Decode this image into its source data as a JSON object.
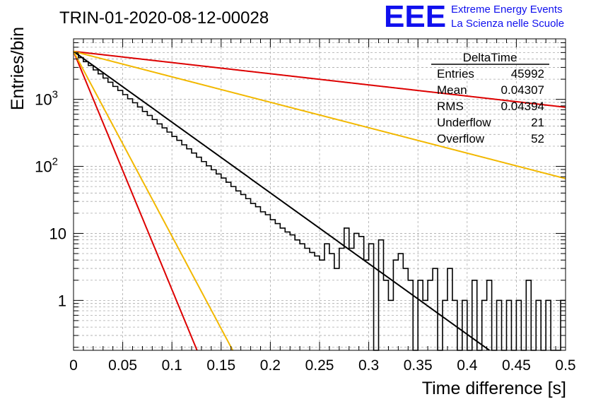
{
  "run_title": "TRIN-01-2020-08-12-00028",
  "logo": {
    "text": "EEE",
    "line1": "Extreme Energy Events",
    "line2": "La Scienza nelle Scuole",
    "color": "#1010ee"
  },
  "stats": {
    "title": "DeltaTime",
    "rows": [
      {
        "label": "Entries",
        "value": "45992"
      },
      {
        "label": "Mean",
        "value": "0.04307"
      },
      {
        "label": "RMS",
        "value": "0.04394"
      },
      {
        "label": "Underflow",
        "value": "21"
      },
      {
        "label": "Overflow",
        "value": "52"
      }
    ]
  },
  "chart_data": {
    "type": "histogram",
    "title": "TRIN-01-2020-08-12-00028",
    "xlabel": "Time difference [s]",
    "ylabel": "Entries/bin",
    "xlim": [
      0,
      0.5
    ],
    "ylim": [
      0.18,
      8000
    ],
    "yscale": "log",
    "grid": true,
    "x_ticks": [
      "0",
      "0.05",
      "0.1",
      "0.15",
      "0.2",
      "0.25",
      "0.3",
      "0.35",
      "0.4",
      "0.45",
      "0.5"
    ],
    "y_ticks": [
      {
        "value": 1,
        "label": "1"
      },
      {
        "value": 10,
        "label": "10"
      },
      {
        "value": 100,
        "label": "10^2"
      },
      {
        "value": 1000,
        "label": "10^3"
      }
    ],
    "bin_width": 0.005,
    "histogram": {
      "color": "#000000",
      "counts": [
        4900,
        4200,
        3650,
        3200,
        2750,
        2400,
        2080,
        1800,
        1560,
        1360,
        1180,
        1020,
        890,
        770,
        660,
        575,
        500,
        430,
        375,
        325,
        280,
        245,
        210,
        183,
        158,
        137,
        118,
        102,
        89,
        77,
        67,
        58,
        50,
        43,
        38,
        33,
        28,
        25,
        21,
        19,
        16,
        14,
        12,
        10.5,
        9.5,
        8,
        7,
        6,
        5.2,
        4.6,
        4,
        7,
        5,
        3,
        6,
        12,
        6,
        10,
        9,
        4,
        7,
        0,
        8,
        2,
        1,
        4,
        5,
        3,
        2,
        0,
        2,
        1,
        2,
        3,
        0,
        1,
        3,
        1,
        0,
        1,
        0,
        2,
        0,
        1,
        2,
        0,
        1,
        0,
        1,
        0,
        1,
        0,
        2,
        0,
        1,
        0,
        1,
        0,
        0,
        1
      ]
    },
    "fits": [
      {
        "color": "#000000",
        "A": 5200,
        "tau": 0.04115
      },
      {
        "color": "#dd0000",
        "A": 5200,
        "tau": 0.2605
      },
      {
        "color": "#f2b800",
        "A": 5200,
        "tau": 0.1144
      },
      {
        "color": "#dd0000",
        "A": 5200,
        "tau": 0.01222
      },
      {
        "color": "#f2b800",
        "A": 5200,
        "tau": 0.01575
      }
    ]
  }
}
